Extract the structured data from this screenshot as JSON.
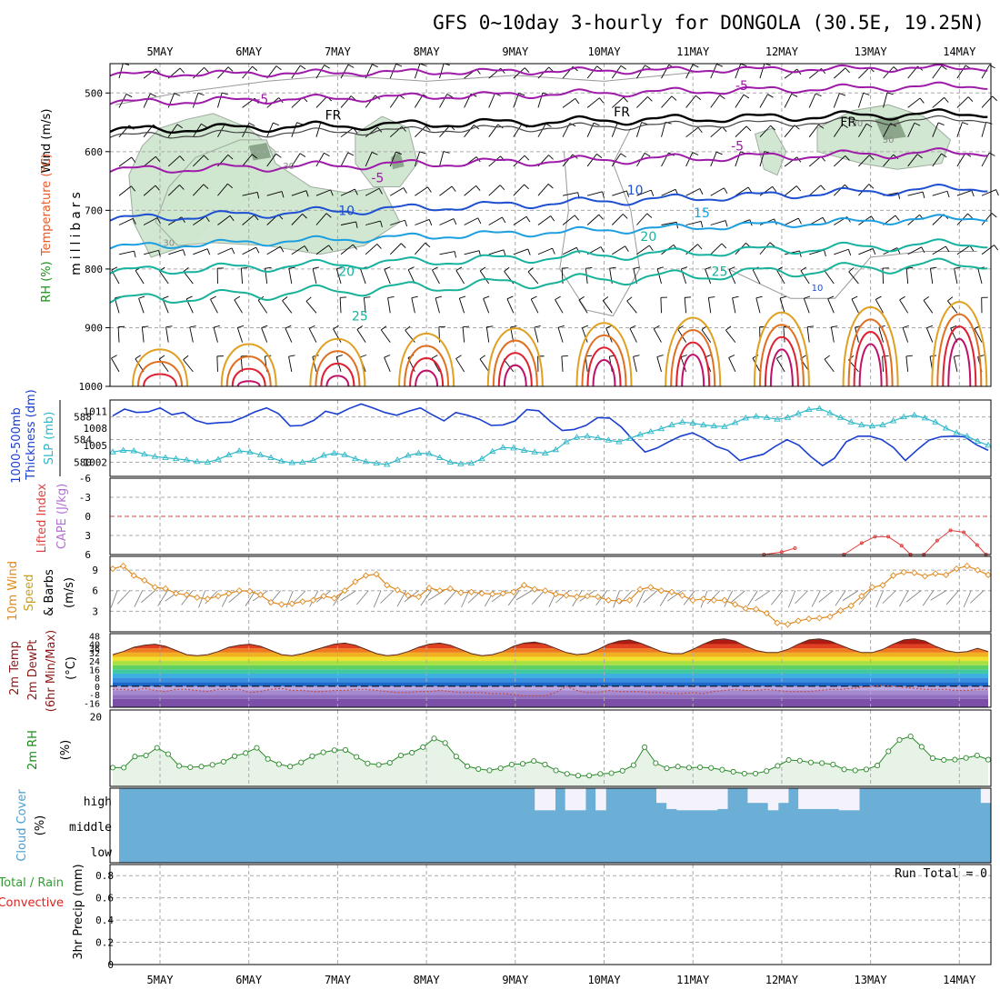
{
  "title": "GFS 0~10day 3-hourly for DONGOLA (30.5E, 19.25N)",
  "dates": [
    "5MAY",
    "6MAY",
    "7MAY",
    "8MAY",
    "9MAY",
    "10MAY",
    "11MAY",
    "12MAY",
    "13MAY",
    "14MAY"
  ],
  "colors": {
    "freezing": "#000000",
    "minus5": "#9e1aa8",
    "plus10": "#1e4fd0",
    "plus15": "#1b9fe0",
    "plus20": "#16b2a0",
    "plus25": "#18b29a",
    "warm1": "#e0a020",
    "warm2": "#e07020",
    "warm3": "#e02030",
    "warm4": "#c0106a",
    "rh": "#cfe6cf",
    "rhDark": "#6e8a6e",
    "thickness": "#1a3fd0",
    "slp": "#30b8c8",
    "liftedIndex": "#e04040",
    "wind": "#e08a20",
    "cloud": "#6baed6",
    "rain": "#2ea02e"
  },
  "chart_data": [
    {
      "type": "contour",
      "id": "upper_air",
      "ylabel": "millibars",
      "side_labels": [
        "Wind (m/s)",
        "Temperature (°C)",
        "RH (%)"
      ],
      "ylim": [
        1000,
        450
      ],
      "pressure_ticks": [
        500,
        600,
        700,
        800,
        900,
        1000
      ],
      "isotherm_labels": [
        {
          "text": "-5",
          "day": 1.15,
          "p": 518
        },
        {
          "text": "-5",
          "day": 6.55,
          "p": 495
        },
        {
          "text": "FR",
          "day": 1.95,
          "p": 545
        },
        {
          "text": "FR",
          "day": 5.2,
          "p": 540
        },
        {
          "text": "FR",
          "day": 7.75,
          "p": 557
        },
        {
          "text": "-5",
          "day": 2.45,
          "p": 652
        },
        {
          "text": "-5",
          "day": 6.5,
          "p": 598
        },
        {
          "text": "10",
          "day": 2.1,
          "p": 708
        },
        {
          "text": "10",
          "day": 5.35,
          "p": 673
        },
        {
          "text": "15",
          "day": 6.1,
          "p": 712
        },
        {
          "text": "20",
          "day": 5.5,
          "p": 752
        },
        {
          "text": "20",
          "day": 2.1,
          "p": 812
        },
        {
          "text": "25",
          "day": 6.3,
          "p": 812
        },
        {
          "text": "25",
          "day": 2.25,
          "p": 888
        },
        {
          "text": "30",
          "day": 1.45,
          "p": 630
        },
        {
          "text": "30",
          "day": 0.1,
          "p": 761
        },
        {
          "text": "10",
          "day": 7.4,
          "p": 837
        },
        {
          "text": "30",
          "day": 7.85,
          "p": 557
        },
        {
          "text": "30",
          "day": 8.2,
          "p": 585
        }
      ]
    },
    {
      "type": "line",
      "id": "thickness_slp",
      "ylabels": [
        "1000-500mb Thickness (dm)",
        "SLP (mb)"
      ],
      "thickness_ticks": [
        580,
        584,
        588
      ],
      "slp_ticks": [
        1002,
        1005,
        1008,
        1011
      ],
      "thickness_range": [
        577.5,
        591
      ],
      "slp_range": [
        999.5,
        1013
      ],
      "series": [
        {
          "id": "thickness",
          "values": [
            588.2,
            589.4,
            588.8,
            588.9,
            589.6,
            588.4,
            588.8,
            587.4,
            586.8,
            587.0,
            587.1,
            587.9,
            588.9,
            589.6,
            588.6,
            586.4,
            586.5,
            587.4,
            589.0,
            588.5,
            589.5,
            590.3,
            589.6,
            588.8,
            588.3,
            589.0,
            589.6,
            588.4,
            587.3,
            588.8,
            588.3,
            587.6,
            586.5,
            586.6,
            587.3,
            589.3,
            589.1,
            587.2,
            585.6,
            585.8,
            586.5,
            587.9,
            587.8,
            586.2,
            583.9,
            581.8,
            582.5,
            583.6,
            584.6,
            585.2,
            584.2,
            582.8,
            582.1,
            580.3,
            580.9,
            581.4,
            582.8,
            584.0,
            583.0,
            581.0,
            579.4,
            580.7,
            583.6,
            584.6,
            584.6,
            584.0,
            582.6,
            580.3,
            582.2,
            583.9,
            584.5,
            584.6,
            584.5,
            583.1,
            582.1
          ]
        },
        {
          "id": "slp",
          "values": [
            1003.8,
            1004.1,
            1004.0,
            1003.4,
            1003.0,
            1002.8,
            1002.6,
            1002.4,
            1002.1,
            1002.0,
            1002.5,
            1003.3,
            1004.0,
            1003.8,
            1003.3,
            1002.8,
            1002.2,
            1001.9,
            1002.0,
            1002.3,
            1003.2,
            1003.6,
            1003.3,
            1002.6,
            1002.1,
            1001.8,
            1001.6,
            1002.4,
            1003.2,
            1003.6,
            1003.5,
            1002.8,
            1002.0,
            1001.7,
            1001.8,
            1002.6,
            1003.9,
            1004.6,
            1004.5,
            1004.1,
            1003.8,
            1003.6,
            1004.2,
            1005.6,
            1006.4,
            1006.6,
            1006.3,
            1005.9,
            1005.6,
            1006.2,
            1006.9,
            1007.4,
            1007.9,
            1008.6,
            1009.1,
            1008.9,
            1008.6,
            1008.4,
            1008.3,
            1009.0,
            1009.8,
            1010.1,
            1009.9,
            1009.6,
            1009.9,
            1010.6,
            1011.3,
            1011.5,
            1010.7,
            1009.9,
            1009.1,
            1008.6,
            1008.4,
            1008.6,
            1009.3,
            1010.0,
            1010.3,
            1009.8,
            1009.1,
            1008.0,
            1007.2,
            1006.6,
            1005.7,
            1005.0
          ]
        }
      ]
    },
    {
      "type": "line",
      "id": "instability",
      "ylabels": [
        "Lifted Index",
        "CAPE (J/kg)"
      ],
      "ticks": [
        -6,
        -3,
        0,
        3,
        6
      ],
      "ylim": [
        -6,
        6
      ],
      "segments": [
        [
          [
            6.8,
            6.0
          ],
          [
            7.0,
            5.6
          ],
          [
            7.15,
            5.0
          ]
        ],
        [
          [
            7.7,
            6.0
          ],
          [
            7.9,
            4.2
          ],
          [
            8.05,
            3.2
          ],
          [
            8.2,
            3.2
          ],
          [
            8.35,
            4.6
          ],
          [
            8.45,
            6.0
          ]
        ],
        [
          [
            8.6,
            6.0
          ],
          [
            8.75,
            3.8
          ],
          [
            8.9,
            2.2
          ],
          [
            9.05,
            2.5
          ],
          [
            9.2,
            4.5
          ],
          [
            9.3,
            6.0
          ]
        ]
      ]
    },
    {
      "type": "line",
      "id": "wind10m",
      "ylabels": [
        "10m Wind Speed",
        "& Barbs (m/s)"
      ],
      "ticks": [
        3,
        6,
        9
      ],
      "ylim": [
        0,
        11
      ],
      "values": [
        9.2,
        9.6,
        8.2,
        7.5,
        6.5,
        6.3,
        5.6,
        5.4,
        5.0,
        4.8,
        5.2,
        5.6,
        6.0,
        5.9,
        5.4,
        4.3,
        4.0,
        4.1,
        4.4,
        4.6,
        5.2,
        4.9,
        6.0,
        7.3,
        8.2,
        8.4,
        6.8,
        6.1,
        5.3,
        5.1,
        6.4,
        6.0,
        6.3,
        5.7,
        5.8,
        5.6,
        5.5,
        5.6,
        5.8,
        6.8,
        6.2,
        6.0,
        5.5,
        5.3,
        5.1,
        5.2,
        5.1,
        4.6,
        4.5,
        4.6,
        6.2,
        6.5,
        6.0,
        5.8,
        5.3,
        4.6,
        4.8,
        4.6,
        4.6,
        4.0,
        3.4,
        3.3,
        2.7,
        1.3,
        1.1,
        1.6,
        1.9,
        2.0,
        2.2,
        3.1,
        3.8,
        5.2,
        6.5,
        6.8,
        8.2,
        8.7,
        8.6,
        8.1,
        8.5,
        8.3,
        9.2,
        9.6,
        9.0,
        8.3
      ]
    },
    {
      "type": "area",
      "id": "temp2m",
      "ylabels": [
        "2m Temp",
        "2m DewPt",
        "(6hr Min/Max) (°C)"
      ],
      "ticks": [
        -16,
        -8,
        0,
        8,
        16,
        24,
        32,
        36,
        40,
        48
      ],
      "ylim": [
        -20,
        50
      ],
      "temp": [
        30,
        33,
        37,
        39,
        40,
        38,
        34,
        30,
        29,
        30,
        33,
        37,
        39,
        40,
        38,
        34,
        30,
        29,
        31,
        34,
        37,
        40,
        41,
        39,
        35,
        31,
        29,
        30,
        33,
        37,
        40,
        41,
        39,
        35,
        31,
        29,
        30,
        33,
        38,
        41,
        42,
        40,
        36,
        32,
        30,
        31,
        35,
        40,
        43,
        44,
        41,
        37,
        33,
        31,
        31,
        35,
        40,
        44,
        45,
        43,
        38,
        34,
        32,
        32,
        35,
        40,
        44,
        45,
        43,
        39,
        35,
        32,
        32,
        35,
        40,
        44,
        45,
        43,
        38,
        34,
        32,
        33,
        36,
        33
      ],
      "dewpoint": [
        -3,
        -3,
        -4,
        -2,
        -4,
        -5,
        -3,
        -3,
        -4,
        -5,
        -3,
        -3,
        -3,
        -6,
        -5,
        -3,
        -2,
        -4,
        -4,
        -5,
        -5,
        -4,
        -4,
        -3,
        -3,
        -4,
        -5,
        -6,
        -6,
        -5,
        -5,
        -4,
        -5,
        -6,
        -6,
        -6,
        -7,
        -7,
        -8,
        -9,
        -9,
        -9,
        -6,
        0,
        -4,
        -6,
        -6,
        -4,
        -5,
        -5,
        -5,
        -6,
        -6,
        -7,
        -7,
        -6,
        -7,
        -5,
        -4,
        -3,
        -4,
        -4,
        -3,
        -4,
        -5,
        -5,
        -5,
        -4,
        -3,
        -3,
        -2,
        -1,
        0,
        1,
        0,
        -1,
        -2,
        -3,
        -3,
        -3,
        -4,
        -4,
        -3,
        -3
      ]
    },
    {
      "type": "area",
      "id": "rh2m",
      "ylabels": [
        "2m RH",
        "(%)"
      ],
      "ticks": [
        20
      ],
      "ylim": [
        0,
        22
      ],
      "values": [
        5.4,
        5.4,
        8.6,
        8.9,
        11.1,
        9.3,
        5.9,
        5.5,
        5.7,
        6.2,
        7.1,
        8.7,
        9.6,
        11.1,
        7.9,
        6.4,
        5.7,
        6.9,
        8.7,
        9.8,
        10.4,
        10.5,
        8.5,
        6.6,
        6.2,
        6.8,
        8.9,
        9.7,
        11.3,
        13.8,
        12.5,
        8.6,
        5.8,
        5.0,
        4.6,
        5.2,
        6.3,
        6.5,
        7.3,
        6.3,
        4.6,
        3.6,
        3.1,
        3.1,
        3.6,
        3.8,
        4.5,
        6.1,
        11.3,
        6.7,
        5.2,
        5.7,
        5.4,
        5.5,
        5.3,
        4.8,
        4.2,
        3.7,
        3.7,
        4.4,
        5.9,
        7.6,
        7.4,
        6.9,
        6.7,
        6.3,
        4.9,
        4.6,
        4.9,
        6.0,
        10.1,
        13.4,
        14.4,
        11.4,
        8.1,
        7.6,
        7.7,
        8.2,
        8.9,
        7.7
      ]
    },
    {
      "type": "heatmap",
      "id": "cloud",
      "ylabels": [
        "Cloud Cover",
        "(%)"
      ],
      "levels": [
        "high",
        "middle",
        "low"
      ],
      "high": [
        100,
        100,
        100,
        100,
        100,
        100,
        100,
        100,
        100,
        100,
        100,
        100,
        100,
        100,
        100,
        100,
        100,
        100,
        100,
        100,
        100,
        100,
        100,
        100,
        100,
        100,
        100,
        100,
        100,
        100,
        100,
        100,
        100,
        100,
        100,
        100,
        100,
        100,
        100,
        100,
        100,
        10,
        10,
        100,
        10,
        10,
        100,
        10,
        100,
        100,
        100,
        100,
        100,
        40,
        15,
        10,
        10,
        10,
        10,
        15,
        100,
        100,
        40,
        40,
        10,
        40,
        100,
        15,
        15,
        15,
        15,
        10,
        10,
        100,
        100,
        100,
        100,
        100,
        100,
        100,
        100,
        100,
        100,
        100,
        100,
        40
      ],
      "middle": [],
      "low": []
    },
    {
      "type": "bar",
      "id": "precip",
      "ylabels": [
        "Total / Rain",
        "Convective",
        "3hr Precip (mm)"
      ],
      "ticks": [
        0,
        0.2,
        0.4,
        0.6,
        0.8
      ],
      "ylim": [
        0,
        0.9
      ],
      "values": [],
      "run_total": "Run Total = 0"
    }
  ],
  "labels": {
    "wind": "Wind (m/s)",
    "temperature": "Temperature (°C)",
    "rh": "RH (%)",
    "millibars": "millibars",
    "thickness1": "1000-500mb",
    "thickness2": "Thickness (dm)",
    "slp": "SLP (mb)",
    "lifted": "Lifted Index",
    "cape": "CAPE (J/kg)",
    "wind10a": "10m Wind",
    "wind10b": "Speed",
    "wind10c": "& Barbs",
    "wind10d": "(m/s)",
    "temp1": "2m Temp",
    "temp2": "2m DewPt",
    "temp3": "(6hr Min/Max)",
    "temp4": "(°C)",
    "rh2m": "2m RH",
    "rh2mUnit": "(%)",
    "cloud1": "Cloud Cover",
    "cloud2": "(%)",
    "precip1": "Total / Rain",
    "precip2": "Convective",
    "precip3": "3hr Precip (mm)"
  }
}
